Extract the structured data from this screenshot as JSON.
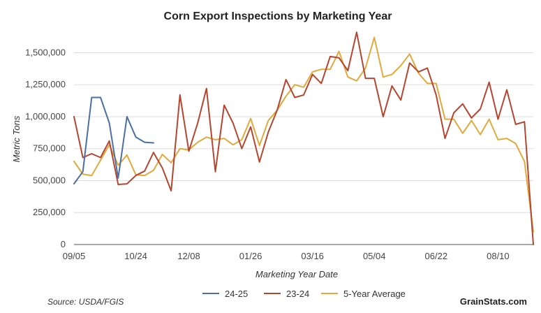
{
  "chart_data": {
    "type": "line",
    "title": "Corn Export Inspections by Marketing Year",
    "xlabel": "Marketing Year Date",
    "ylabel": "Metric Tons",
    "ylim": [
      0,
      1650000
    ],
    "yticks": [
      0,
      250000,
      500000,
      750000,
      1000000,
      1250000,
      1500000
    ],
    "ytick_labels": [
      "0",
      "250,000",
      "500,000",
      "750,000",
      "1,000,000",
      "1,250,000",
      "1,500,000"
    ],
    "x_week_count": 53,
    "xticks": [
      {
        "week": 0,
        "label": "09/05"
      },
      {
        "week": 7,
        "label": "10/24"
      },
      {
        "week": 13,
        "label": "12/08"
      },
      {
        "week": 20,
        "label": "01/26"
      },
      {
        "week": 27,
        "label": "03/16"
      },
      {
        "week": 34,
        "label": "05/04"
      },
      {
        "week": 41,
        "label": "06/22"
      },
      {
        "week": 48,
        "label": "08/10"
      }
    ],
    "grid": true,
    "legend_position": "bottom",
    "series": [
      {
        "name": "24-25",
        "color": "#4A6FA5",
        "values": [
          475000,
          570000,
          1150000,
          1150000,
          950000,
          520000,
          1000000,
          840000,
          800000,
          795000
        ]
      },
      {
        "name": "23-24",
        "color": "#B5452F",
        "values": [
          1000000,
          680000,
          710000,
          680000,
          810000,
          470000,
          475000,
          540000,
          575000,
          720000,
          600000,
          420000,
          1170000,
          730000,
          950000,
          1220000,
          570000,
          1090000,
          950000,
          750000,
          920000,
          645000,
          880000,
          1050000,
          1290000,
          1150000,
          1170000,
          1330000,
          1260000,
          1470000,
          1460000,
          1360000,
          1660000,
          1300000,
          1300000,
          1000000,
          1240000,
          1130000,
          1420000,
          1350000,
          1380000,
          1170000,
          830000,
          1030000,
          1100000,
          990000,
          1060000,
          1270000,
          980000,
          1210000,
          940000,
          960000,
          0
        ]
      },
      {
        "name": "5-Year Average",
        "color": "#E3A93A",
        "values": [
          650000,
          550000,
          540000,
          660000,
          780000,
          620000,
          700000,
          545000,
          540000,
          580000,
          705000,
          640000,
          750000,
          740000,
          800000,
          840000,
          820000,
          830000,
          780000,
          820000,
          985000,
          775000,
          970000,
          1050000,
          1160000,
          1250000,
          1230000,
          1350000,
          1370000,
          1370000,
          1510000,
          1310000,
          1280000,
          1380000,
          1620000,
          1310000,
          1330000,
          1400000,
          1490000,
          1340000,
          1260000,
          1260000,
          980000,
          980000,
          870000,
          970000,
          860000,
          980000,
          820000,
          830000,
          790000,
          650000,
          100000
        ]
      }
    ]
  },
  "footer": {
    "source": "Source: USDA/FGIS",
    "brand": "GrainStats.com"
  }
}
